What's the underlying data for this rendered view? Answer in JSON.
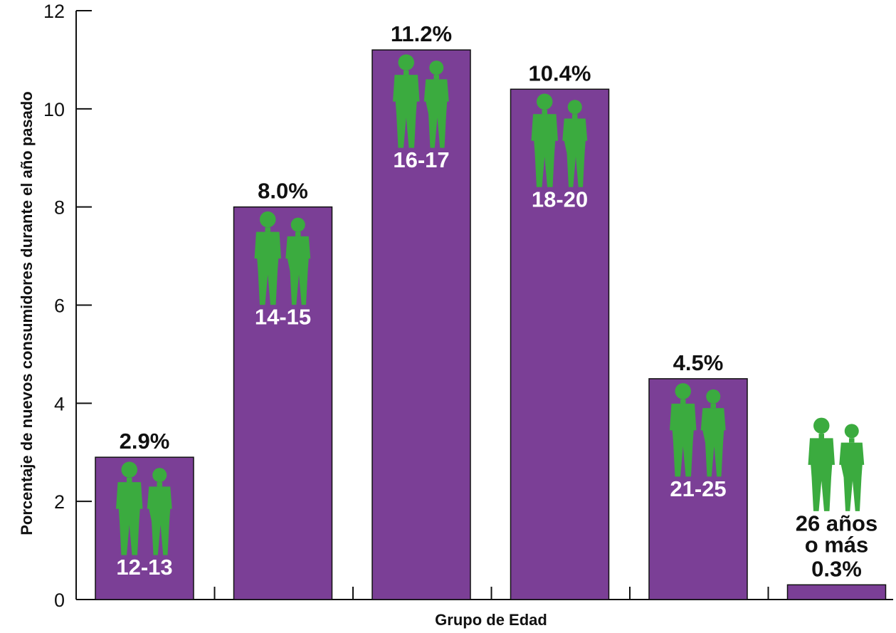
{
  "colors": {
    "bar": "#7b3f96",
    "figure": "#3bab3f",
    "axis": "#111111",
    "text": "#111111",
    "label_on_bar": "#ffffff"
  },
  "icon": "person-pair-icon",
  "chart_data": {
    "type": "bar",
    "title": "",
    "xlabel": "Grupo de Edad",
    "ylabel": "Porcentaje de nuevos consumidores durante el año pasado",
    "ylim": [
      0,
      12
    ],
    "yticks": [
      "0",
      "2",
      "4",
      "6",
      "8",
      "10",
      "12"
    ],
    "grid": false,
    "legend": "none",
    "categories": [
      "12-13",
      "14-15",
      "16-17",
      "18-20",
      "21-25",
      "26 años o más"
    ],
    "category_lines": [
      [
        "12-13"
      ],
      [
        "14-15"
      ],
      [
        "16-17"
      ],
      [
        "18-20"
      ],
      [
        "21-25"
      ],
      [
        "26 años",
        "o más"
      ]
    ],
    "values": [
      2.9,
      8.0,
      11.2,
      10.4,
      4.5,
      0.3
    ],
    "value_labels": [
      "2.9%",
      "8.0%",
      "11.2%",
      "10.4%",
      "4.5%",
      "0.3%"
    ]
  }
}
